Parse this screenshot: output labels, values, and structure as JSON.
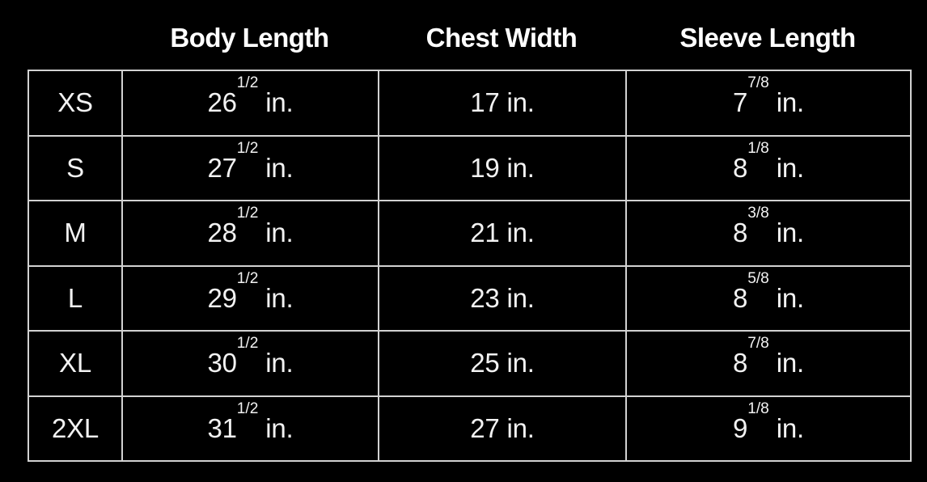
{
  "colors": {
    "background": "#000000",
    "text": "#ffffff",
    "border": "#d2d2d2"
  },
  "unit": "in.",
  "header": {
    "columns": [
      "Body Length",
      "Chest Width",
      "Sleeve Length"
    ]
  },
  "rows": [
    {
      "size": "XS",
      "body": {
        "num": "26",
        "frac": "1/2"
      },
      "chest": {
        "num": "17",
        "frac": ""
      },
      "sleeve": {
        "num": "7",
        "frac": "7/8"
      }
    },
    {
      "size": "S",
      "body": {
        "num": "27",
        "frac": "1/2"
      },
      "chest": {
        "num": "19",
        "frac": ""
      },
      "sleeve": {
        "num": "8",
        "frac": "1/8"
      }
    },
    {
      "size": "M",
      "body": {
        "num": "28",
        "frac": "1/2"
      },
      "chest": {
        "num": "21",
        "frac": ""
      },
      "sleeve": {
        "num": "8",
        "frac": "3/8"
      }
    },
    {
      "size": "L",
      "body": {
        "num": "29",
        "frac": "1/2"
      },
      "chest": {
        "num": "23",
        "frac": ""
      },
      "sleeve": {
        "num": "8",
        "frac": "5/8"
      }
    },
    {
      "size": "XL",
      "body": {
        "num": "30",
        "frac": "1/2"
      },
      "chest": {
        "num": "25",
        "frac": ""
      },
      "sleeve": {
        "num": "8",
        "frac": "7/8"
      }
    },
    {
      "size": "2XL",
      "body": {
        "num": "31",
        "frac": "1/2"
      },
      "chest": {
        "num": "27",
        "frac": ""
      },
      "sleeve": {
        "num": "9",
        "frac": "1/8"
      }
    }
  ],
  "chart_data": {
    "type": "table",
    "columns": [
      "",
      "Body Length",
      "Chest Width",
      "Sleeve Length"
    ],
    "rows": [
      [
        "XS",
        "26 1/2 in.",
        "17 in.",
        "7 7/8 in."
      ],
      [
        "S",
        "27 1/2 in.",
        "19 in.",
        "8 1/8 in."
      ],
      [
        "M",
        "28 1/2 in.",
        "21 in.",
        "8 3/8 in."
      ],
      [
        "L",
        "29 1/2 in.",
        "23 in.",
        "8 5/8 in."
      ],
      [
        "XL",
        "30 1/2 in.",
        "25 in.",
        "8 7/8 in."
      ],
      [
        "2XL",
        "31 1/2 in.",
        "27 in.",
        "9 1/8 in."
      ]
    ],
    "layout": {
      "background": "#000000",
      "grid_borders": true,
      "first_column_headerless": true,
      "values_centered": true
    }
  }
}
